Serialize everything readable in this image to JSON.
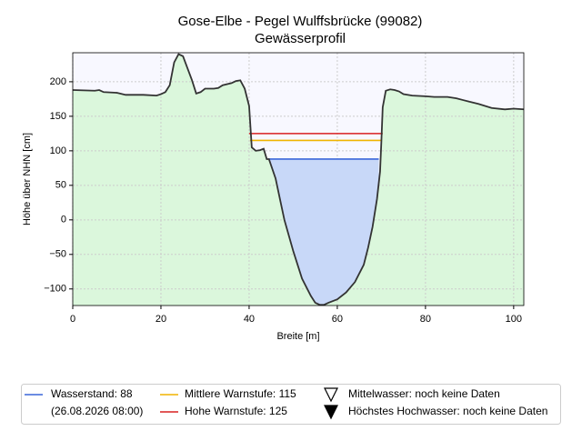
{
  "chart_data": {
    "type": "profile",
    "title": "Gose-Elbe - Pegel Wulffsbrücke (99082)",
    "subtitle": "Gewässerprofil",
    "x_label": "Breite [m]",
    "y_label": "Höhe über NHN [cm]",
    "xlim": [
      0,
      102.3
    ],
    "ylim": [
      -124,
      242
    ],
    "xticks": [
      0,
      20,
      40,
      60,
      80,
      100
    ],
    "yticks": [
      {
        "value": -100,
        "label": "−100"
      },
      {
        "value": -50,
        "label": "−50"
      },
      0,
      50,
      100,
      150,
      200
    ],
    "grid": true,
    "profile": {
      "color": "#333333",
      "ground_color": "#dbf7dc",
      "sky_color": "#f8f8ff",
      "x": [
        0,
        5,
        6,
        7,
        10,
        12,
        16,
        19,
        20,
        21,
        22,
        23,
        24,
        25,
        27,
        28,
        29,
        30,
        32,
        33,
        34,
        36,
        37,
        38,
        39,
        40,
        40.6,
        41.5,
        42.5,
        43.3,
        44,
        44.5,
        46,
        47,
        48,
        50,
        52,
        54,
        55,
        56,
        57,
        58,
        60,
        62,
        64,
        66,
        67,
        68,
        69,
        69.7,
        70,
        70.3,
        71,
        72,
        73,
        74,
        75,
        77,
        80,
        82,
        85,
        87,
        90,
        92,
        95,
        98,
        100,
        102.3
      ],
      "y": [
        188,
        187,
        188,
        185,
        184,
        181,
        181,
        180,
        182,
        185,
        195,
        228,
        240,
        237,
        203,
        183,
        185,
        190,
        190,
        191,
        195,
        198,
        201,
        202,
        190,
        165,
        105,
        100,
        101,
        103,
        88,
        88,
        60,
        30,
        0,
        -45,
        -85,
        -110,
        -120,
        -123,
        -123,
        -120,
        -115,
        -105,
        -90,
        -65,
        -40,
        -10,
        30,
        70,
        114,
        163,
        187,
        189,
        188,
        186,
        182,
        180,
        179,
        178,
        178,
        176,
        171,
        168,
        162,
        160,
        161,
        160
      ]
    },
    "levels": [
      {
        "name": "Wasserstand: 88",
        "note": "(26.08.2026 08:00)",
        "value": 88,
        "color": "#3a67d9",
        "x": [
          44.5,
          69.4
        ],
        "fill": "#c8d8f8"
      },
      {
        "name": "Mittlere Warnstufe: 115",
        "value": 115,
        "color": "#f0b400",
        "x": [
          40.2,
          70
        ]
      },
      {
        "name": "Hohe Warnstufe: 125",
        "value": 125,
        "color": "#d92020",
        "x": [
          40,
          70.3
        ]
      }
    ],
    "markers": [
      {
        "name": "Mittelwasser: noch keine Daten",
        "filled": false
      },
      {
        "name": "Höchstes Hochwasser: noch keine Daten",
        "filled": true
      }
    ]
  }
}
